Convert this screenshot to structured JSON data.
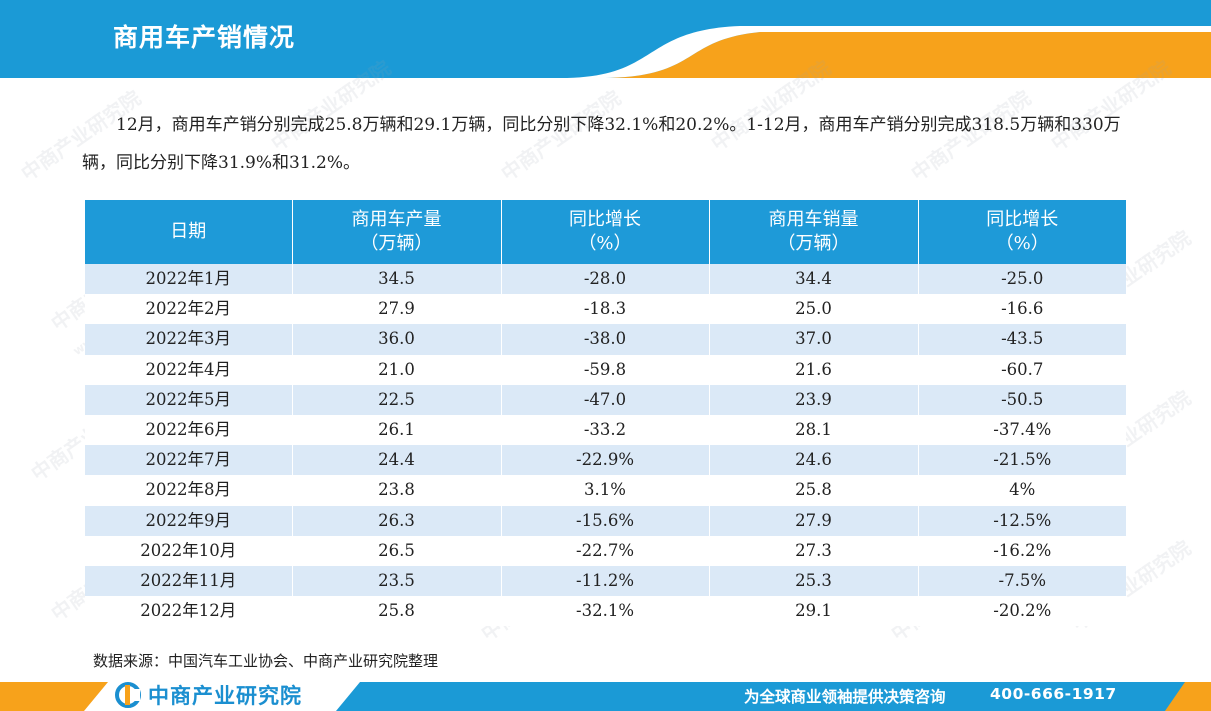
{
  "header": {
    "title": "商用车产销情况"
  },
  "summary": "12月，商用车产销分别完成25.8万辆和29.1万辆，同比分别下降32.1%和20.2%。1-12月，商用车产销分别完成318.5万辆和330万辆，同比分别下降31.9%和31.2%。",
  "table": {
    "headers": [
      {
        "line1": "日期",
        "line2": ""
      },
      {
        "line1": "商用车产量",
        "line2": "（万辆）"
      },
      {
        "line1": "同比增长",
        "line2": "（%）"
      },
      {
        "line1": "商用车销量",
        "line2": "（万辆）"
      },
      {
        "line1": "同比增长",
        "line2": "（%）"
      }
    ],
    "rows": [
      [
        "2022年1月",
        "34.5",
        "-28.0",
        "34.4",
        "-25.0"
      ],
      [
        "2022年2月",
        "27.9",
        "-18.3",
        "25.0",
        "-16.6"
      ],
      [
        "2022年3月",
        "36.0",
        "-38.0",
        "37.0",
        "-43.5"
      ],
      [
        "2022年4月",
        "21.0",
        "-59.8",
        "21.6",
        "-60.7"
      ],
      [
        "2022年5月",
        "22.5",
        "-47.0",
        "23.9",
        "-50.5"
      ],
      [
        "2022年6月",
        "26.1",
        "-33.2",
        "28.1",
        "-37.4%"
      ],
      [
        "2022年7月",
        "24.4",
        "-22.9%",
        "24.6",
        "-21.5%"
      ],
      [
        "2022年8月",
        "23.8",
        "3.1%",
        "25.8",
        "4%"
      ],
      [
        "2022年9月",
        "26.3",
        "-15.6%",
        "27.9",
        "-12.5%"
      ],
      [
        "2022年10月",
        "26.5",
        "-22.7%",
        "27.3",
        "-16.2%"
      ],
      [
        "2022年11月",
        "23.5",
        "-11.2%",
        "25.3",
        "-7.5%"
      ],
      [
        "2022年12月",
        "25.8",
        "-32.1%",
        "29.1",
        "-20.2%"
      ]
    ]
  },
  "source": "数据来源：中国汽车工业协会、中商产业研究院整理",
  "footer": {
    "logo_text": "中商产业研究院",
    "slogan": "为全球商业领袖提供决策咨询",
    "phone": "400-666-1917"
  },
  "watermark": {
    "text": "中商产业研究院",
    "url": "www.askci.com/reports"
  },
  "colors": {
    "header_blue": "#1b9ad6",
    "accent_orange": "#f7a21b",
    "row_stripe": "#dbe9f7"
  }
}
